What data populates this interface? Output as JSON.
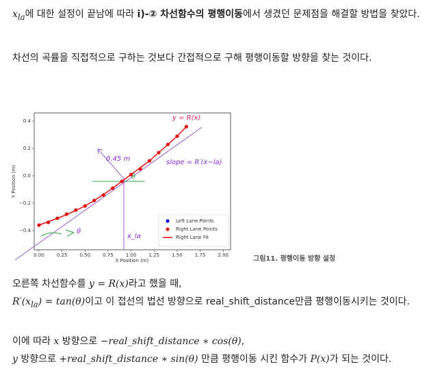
{
  "paragraphs": [
    [
      "x",
      "la",
      "에 대한 설정이 끝남에 따라 ",
      "ⅰ)-② 차선함수의 평행이동",
      "에서 생겼던 문제점을 해결할 방법을 찾았다."
    ],
    [
      "차선의 곡률을 직접적으로 구하는 것보다 간접적으로 구해 평행이동할 방향을 찾는 것이다."
    ],
    [
      "오른쪽 차선함수를 ",
      "y = R(x)",
      "라고 했을 때,",
      "R′(x",
      "la",
      ") = tan(θ)",
      "이고 이 접선의 법선 방향으로 real_shift_distance만큼 평행이동시키는 것이다."
    ],
    [
      "이에 따라 ",
      "x",
      " 방향으로 ",
      "−real_shift_distance ∗ cos(θ)",
      ",",
      "y",
      " 방향으로 ",
      "+real_shift_distance ∗ sin(θ)",
      " 만큼 평행이동 시킨 함수가 ",
      "P(x)",
      "가 되는 것이다."
    ]
  ],
  "figure": {
    "caption": "그림11. 평행이동 방향 설정",
    "chart_data": {
      "type": "scatter",
      "x_label": "X Position (m)",
      "y_label": "Y Position (m)",
      "xlim": [
        -0.052,
        2.08
      ],
      "ylim": [
        -0.54,
        0.46
      ],
      "xticks": [
        {
          "value": 0,
          "label": "0.00"
        },
        0.25,
        {
          "value": 0.5,
          "label": "0.50"
        },
        0.75,
        {
          "value": 1,
          "label": "1.00"
        },
        1.25,
        {
          "value": 1.5,
          "label": "1.50"
        },
        1.75,
        {
          "value": 2,
          "label": "2.00"
        }
      ],
      "yticks": [
        {
          "value": -0.4,
          "label": "−0.4"
        },
        {
          "value": -0.2,
          "label": "−0.2"
        },
        {
          "value": 0,
          "label": "0.0"
        },
        0.2,
        0.4
      ],
      "series": [
        {
          "name": "Left Lane Points",
          "color": "#1010e0",
          "style": "points",
          "x": [],
          "values": []
        },
        {
          "name": "Right Lane Points",
          "color": "#e01010",
          "style": "points",
          "x": [
            0,
            0.1,
            0.2,
            0.3,
            0.4,
            0.5,
            0.6,
            0.7,
            0.8,
            0.9,
            1.0,
            1.1,
            1.2,
            1.3,
            1.4,
            1.5,
            1.6
          ],
          "values": [
            -0.36,
            -0.34,
            -0.31,
            -0.28,
            -0.25,
            -0.22,
            -0.18,
            -0.14,
            -0.09,
            -0.04,
            0.01,
            0.05,
            0.11,
            0.17,
            0.23,
            0.29,
            0.36
          ]
        },
        {
          "name": "Right Lane Fit",
          "color": "#e01010",
          "style": "line",
          "x": [
            0,
            0.1,
            0.2,
            0.3,
            0.4,
            0.5,
            0.6,
            0.7,
            0.8,
            0.9,
            1.0,
            1.1,
            1.2,
            1.3,
            1.4,
            1.5,
            1.6
          ],
          "values": [
            -0.36,
            -0.335,
            -0.31,
            -0.283,
            -0.253,
            -0.22,
            -0.18,
            -0.137,
            -0.09,
            -0.04,
            0.01,
            0.06,
            0.11,
            0.17,
            0.23,
            0.29,
            0.36
          ]
        }
      ],
      "annotations": [
        "y = R(x)",
        "0.45 m",
        "slope = R′(x−la)",
        "θ",
        "θ",
        "x_la"
      ]
    }
  }
}
